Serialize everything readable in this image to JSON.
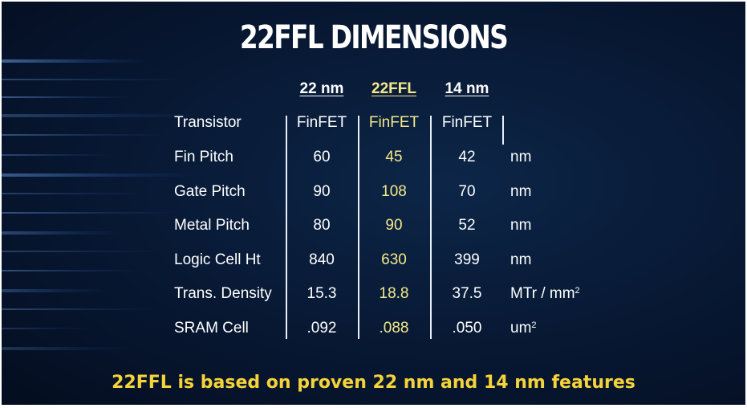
{
  "title": "22FFL DIMENSIONS",
  "columns": [
    {
      "label": "22 nm",
      "highlight": false
    },
    {
      "label": "22FFL",
      "highlight": true
    },
    {
      "label": "14 nm",
      "highlight": false
    }
  ],
  "rows": [
    {
      "label": "Transistor",
      "values": [
        "FinFET",
        "FinFET",
        "FinFET"
      ],
      "unit": "",
      "unit_sup": ""
    },
    {
      "label": "Fin Pitch",
      "values": [
        "60",
        "45",
        "42"
      ],
      "unit": "nm",
      "unit_sup": ""
    },
    {
      "label": "Gate Pitch",
      "values": [
        "90",
        "108",
        "70"
      ],
      "unit": "nm",
      "unit_sup": ""
    },
    {
      "label": "Metal Pitch",
      "values": [
        "80",
        "90",
        "52"
      ],
      "unit": "nm",
      "unit_sup": ""
    },
    {
      "label": "Logic Cell Ht",
      "values": [
        "840",
        "630",
        "399"
      ],
      "unit": "nm",
      "unit_sup": ""
    },
    {
      "label": "Trans. Density",
      "values": [
        "15.3",
        "18.8",
        "37.5"
      ],
      "unit": "MTr / mm",
      "unit_sup": "2"
    },
    {
      "label": "SRAM Cell",
      "values": [
        ".092",
        ".088",
        ".050"
      ],
      "unit": "um",
      "unit_sup": "2"
    }
  ],
  "footer": "22FFL is based on proven 22 nm and 14 nm features",
  "colors": {
    "background": "#081a36",
    "highlight": "#f5e88a",
    "footer": "#f5d33a",
    "text": "#ffffff"
  }
}
